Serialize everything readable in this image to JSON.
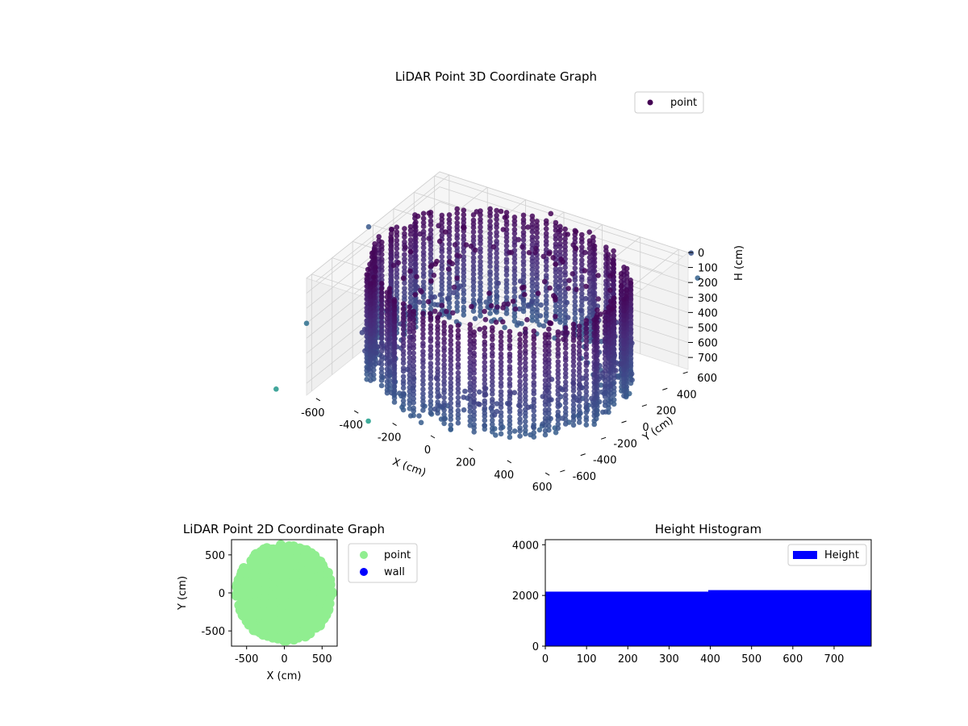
{
  "chart_data": [
    {
      "type": "scatter3d",
      "title": "LiDAR Point 3D Coordinate Graph",
      "xlabel": "X (cm)",
      "ylabel": "Y (cm)",
      "zlabel": "H (cm)",
      "xlim": [
        -650,
        650
      ],
      "ylim": [
        -650,
        650
      ],
      "zlim": [
        780,
        0
      ],
      "x_ticks": [
        -600,
        -400,
        -200,
        0,
        200,
        400,
        600
      ],
      "y_ticks": [
        -600,
        -400,
        -200,
        0,
        200,
        400,
        600
      ],
      "z_ticks": [
        0,
        100,
        200,
        300,
        400,
        500,
        600,
        700
      ],
      "legend": [
        "point"
      ],
      "legend_position": "upper-right",
      "colormap": "viridis",
      "grid": true,
      "structure": "points form a ring wall of radius ~600 cm spanning heights ~0–720 cm, with outlier points scattered outside the ring"
    },
    {
      "type": "scatter",
      "title": "LiDAR Point 2D Coordinate Graph",
      "xlabel": "X (cm)",
      "ylabel": "Y (cm)",
      "xlim": [
        -700,
        700
      ],
      "ylim": [
        -700,
        700
      ],
      "x_ticks": [
        -500,
        0,
        500
      ],
      "y_ticks": [
        -500,
        0,
        500
      ],
      "series": [
        {
          "name": "point",
          "color": "#90ee90"
        },
        {
          "name": "wall",
          "color": "#0000ff"
        }
      ],
      "legend_position": "outside-right"
    },
    {
      "type": "bar",
      "title": "Height Histogram",
      "xlim": [
        0,
        790
      ],
      "ylim": [
        0,
        4200
      ],
      "x_ticks": [
        0,
        100,
        200,
        300,
        400,
        500,
        600,
        700
      ],
      "y_ticks": [
        0,
        2000,
        4000
      ],
      "bins": [
        {
          "start": 0,
          "end": 395,
          "count": 2150
        },
        {
          "start": 395,
          "end": 790,
          "count": 2210
        }
      ],
      "series": [
        {
          "name": "Height",
          "color": "#0000ff"
        }
      ],
      "legend_position": "upper-right"
    }
  ]
}
